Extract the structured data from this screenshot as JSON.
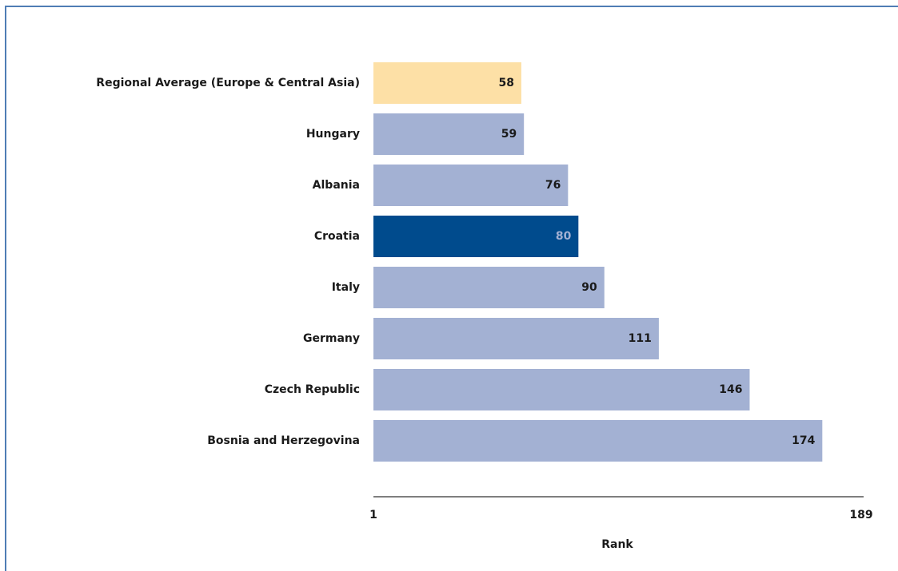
{
  "chart_data": {
    "type": "bar",
    "orientation": "horizontal",
    "categories": [
      "Regional Average (Europe & Central Asia)",
      "Hungary",
      "Albania",
      "Croatia",
      "Italy",
      "Germany",
      "Czech Republic",
      "Bosnia and Herzegovina"
    ],
    "values": [
      58,
      59,
      76,
      80,
      90,
      111,
      146,
      174
    ],
    "colors": [
      "#fde0a6",
      "#a3b1d3",
      "#a3b1d3",
      "#004b8d",
      "#a3b1d3",
      "#a3b1d3",
      "#a3b1d3",
      "#a3b1d3"
    ],
    "label_colors": [
      "#1a1a1a",
      "#1a1a1a",
      "#1a1a1a",
      "#a3b1d3",
      "#1a1a1a",
      "#1a1a1a",
      "#1a1a1a",
      "#1a1a1a"
    ],
    "xlabel": "Rank",
    "xlim": [
      1,
      189
    ],
    "xticks": [
      1,
      189
    ],
    "grid": false
  }
}
